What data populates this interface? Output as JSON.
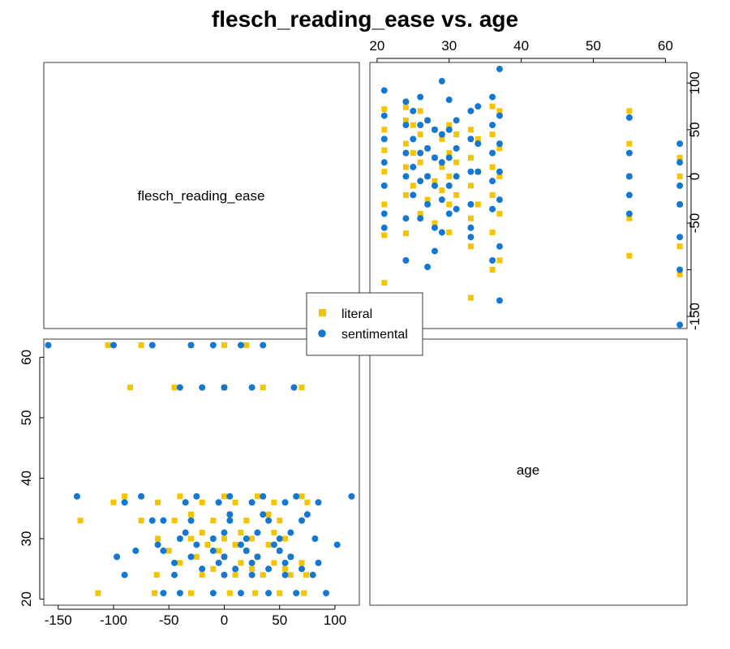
{
  "chart_data": {
    "type": "scatter",
    "title": "flesch_reading_ease vs. age",
    "variables": [
      "flesch_reading_ease",
      "age"
    ],
    "colors": {
      "literal": "#F5C400",
      "sentimental": "#1478D2"
    },
    "legend": {
      "placement": "center",
      "entries": [
        "literal",
        "sentimental"
      ]
    },
    "axes": {
      "age": {
        "range": [
          19,
          63
        ],
        "ticks": [
          20,
          30,
          40,
          50,
          60
        ]
      },
      "flesch_reading_ease": {
        "range": [
          -163,
          122
        ],
        "ticks_x": [
          -150,
          -100,
          -50,
          0,
          50,
          100
        ],
        "ticks_y": [
          -150,
          -50,
          0,
          50,
          100
        ]
      }
    },
    "series": [
      {
        "name": "literal",
        "marker": "square",
        "points": [
          [
            21,
            -114
          ],
          [
            21,
            -63
          ],
          [
            21,
            -30
          ],
          [
            21,
            5
          ],
          [
            21,
            28
          ],
          [
            21,
            50
          ],
          [
            21,
            72
          ],
          [
            24,
            -61
          ],
          [
            24,
            -20
          ],
          [
            24,
            10
          ],
          [
            24,
            35
          ],
          [
            24,
            60
          ],
          [
            24,
            74
          ],
          [
            25,
            -10
          ],
          [
            25,
            25
          ],
          [
            25,
            55
          ],
          [
            26,
            -40
          ],
          [
            26,
            15
          ],
          [
            26,
            45
          ],
          [
            26,
            70
          ],
          [
            27,
            -25
          ],
          [
            27,
            0
          ],
          [
            27,
            30
          ],
          [
            27,
            60
          ],
          [
            28,
            -50
          ],
          [
            28,
            -5
          ],
          [
            28,
            20
          ],
          [
            28,
            50
          ],
          [
            29,
            -15
          ],
          [
            29,
            10
          ],
          [
            29,
            40
          ],
          [
            30,
            -60
          ],
          [
            30,
            -30
          ],
          [
            30,
            0
          ],
          [
            30,
            25
          ],
          [
            30,
            55
          ],
          [
            31,
            -20
          ],
          [
            31,
            15
          ],
          [
            31,
            45
          ],
          [
            33,
            -130
          ],
          [
            33,
            -75
          ],
          [
            33,
            -45
          ],
          [
            33,
            -10
          ],
          [
            33,
            20
          ],
          [
            33,
            50
          ],
          [
            34,
            -30
          ],
          [
            34,
            5
          ],
          [
            34,
            40
          ],
          [
            36,
            -100
          ],
          [
            36,
            -60
          ],
          [
            36,
            -20
          ],
          [
            36,
            10
          ],
          [
            36,
            45
          ],
          [
            36,
            75
          ],
          [
            37,
            -90
          ],
          [
            37,
            -40
          ],
          [
            37,
            0
          ],
          [
            37,
            30
          ],
          [
            37,
            70
          ],
          [
            55,
            -85
          ],
          [
            55,
            -45
          ],
          [
            55,
            0
          ],
          [
            55,
            35
          ],
          [
            55,
            70
          ],
          [
            62,
            -105
          ],
          [
            62,
            -75
          ],
          [
            62,
            -30
          ],
          [
            62,
            0
          ],
          [
            62,
            20
          ]
        ]
      },
      {
        "name": "sentimental",
        "marker": "circle",
        "points": [
          [
            21,
            92
          ],
          [
            21,
            65
          ],
          [
            21,
            40
          ],
          [
            21,
            15
          ],
          [
            21,
            -10
          ],
          [
            21,
            -40
          ],
          [
            21,
            -55
          ],
          [
            24,
            80
          ],
          [
            24,
            55
          ],
          [
            24,
            25
          ],
          [
            24,
            0
          ],
          [
            24,
            -45
          ],
          [
            24,
            -90
          ],
          [
            25,
            70
          ],
          [
            25,
            40
          ],
          [
            25,
            10
          ],
          [
            25,
            -20
          ],
          [
            26,
            85
          ],
          [
            26,
            55
          ],
          [
            26,
            25
          ],
          [
            26,
            -5
          ],
          [
            26,
            -45
          ],
          [
            27,
            60
          ],
          [
            27,
            30
          ],
          [
            27,
            0
          ],
          [
            27,
            -30
          ],
          [
            27,
            -97
          ],
          [
            28,
            50
          ],
          [
            28,
            20
          ],
          [
            28,
            -10
          ],
          [
            28,
            -55
          ],
          [
            28,
            -80
          ],
          [
            29,
            102
          ],
          [
            29,
            45
          ],
          [
            29,
            15
          ],
          [
            29,
            -25
          ],
          [
            29,
            -60
          ],
          [
            30,
            82
          ],
          [
            30,
            50
          ],
          [
            30,
            20
          ],
          [
            30,
            -10
          ],
          [
            30,
            -40
          ],
          [
            31,
            60
          ],
          [
            31,
            30
          ],
          [
            31,
            0
          ],
          [
            31,
            -35
          ],
          [
            33,
            70
          ],
          [
            33,
            40
          ],
          [
            33,
            5
          ],
          [
            33,
            -30
          ],
          [
            33,
            -55
          ],
          [
            33,
            -65
          ],
          [
            34,
            75
          ],
          [
            34,
            35
          ],
          [
            34,
            5
          ],
          [
            36,
            85
          ],
          [
            36,
            55
          ],
          [
            36,
            25
          ],
          [
            36,
            -5
          ],
          [
            36,
            -35
          ],
          [
            36,
            -90
          ],
          [
            37,
            115
          ],
          [
            37,
            65
          ],
          [
            37,
            35
          ],
          [
            37,
            5
          ],
          [
            37,
            -25
          ],
          [
            37,
            -75
          ],
          [
            37,
            -133
          ],
          [
            55,
            63
          ],
          [
            55,
            25
          ],
          [
            55,
            0
          ],
          [
            55,
            -20
          ],
          [
            55,
            -40
          ],
          [
            62,
            35
          ],
          [
            62,
            15
          ],
          [
            62,
            -10
          ],
          [
            62,
            -30
          ],
          [
            62,
            -65
          ],
          [
            62,
            -100
          ],
          [
            62,
            -159
          ]
        ]
      }
    ]
  }
}
